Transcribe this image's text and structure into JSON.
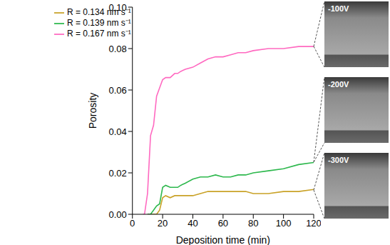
{
  "chart_data": {
    "type": "line",
    "x_label": "Deposition time (min)",
    "y_label": "Porosity",
    "x": [
      7,
      8,
      10,
      12,
      14,
      16,
      18,
      20,
      22,
      25,
      28,
      30,
      32,
      35,
      40,
      45,
      50,
      55,
      60,
      65,
      70,
      75,
      80,
      90,
      100,
      110,
      120
    ],
    "series": [
      {
        "name": "R = 0.134 nm s⁻¹",
        "color": "#c9a227",
        "values": [
          null,
          null,
          0,
          0,
          0,
          0,
          0.002,
          0.008,
          0.009,
          0.008,
          0.009,
          0.009,
          0.009,
          0.009,
          0.009,
          0.01,
          0.011,
          0.011,
          0.011,
          0.011,
          0.011,
          0.011,
          0.01,
          0.01,
          0.011,
          0.011,
          0.012
        ]
      },
      {
        "name": "R = 0.139 nm s⁻¹",
        "color": "#2db84d",
        "values": [
          null,
          null,
          0,
          0,
          0.002,
          0.004,
          0.005,
          0.013,
          0.014,
          0.013,
          0.013,
          0.013,
          0.014,
          0.015,
          0.017,
          0.018,
          0.018,
          0.019,
          0.018,
          0.018,
          0.019,
          0.019,
          0.02,
          0.021,
          0.022,
          0.024,
          0.025
        ]
      },
      {
        "name": "R = 0.167 nm s⁻¹",
        "color": "#ff69c0",
        "values": [
          0,
          0,
          0.01,
          0.038,
          0.043,
          0.057,
          0.061,
          0.065,
          0.066,
          0.066,
          0.068,
          0.068,
          0.069,
          0.07,
          0.071,
          0.073,
          0.075,
          0.076,
          0.076,
          0.077,
          0.078,
          0.078,
          0.079,
          0.08,
          0.08,
          0.081,
          0.081
        ]
      }
    ],
    "xlim": [
      0,
      120
    ],
    "xticks": [
      0,
      20,
      40,
      60,
      80,
      100,
      120
    ],
    "ylim": [
      0,
      0.1
    ],
    "yticks": [
      {
        "value": 0,
        "label": "0.00"
      },
      {
        "value": 0.02,
        "label": "0.02"
      },
      {
        "value": 0.04,
        "label": "0.04"
      },
      {
        "value": 0.06,
        "label": "0.06"
      },
      {
        "value": 0.08,
        "label": "0.08"
      },
      {
        "value": 0.1,
        "label": "0.10"
      }
    ],
    "legend": "top-left",
    "grid": false,
    "panel_labels": [
      "-100V",
      "-200V",
      "-300V"
    ]
  }
}
